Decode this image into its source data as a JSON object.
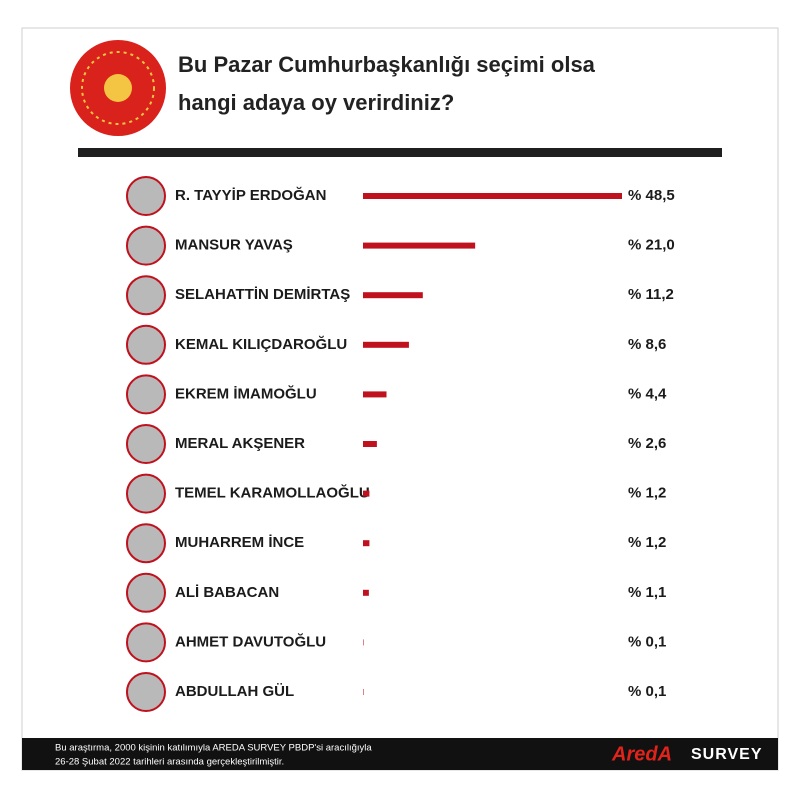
{
  "chart_data": {
    "type": "bar",
    "orientation": "horizontal",
    "title": [
      "Bu Pazar Cumhurbaşkanlığı seçimi olsa",
      "hangi adaya oy verirdiniz?"
    ],
    "categories": [
      "R. TAYYİP ERDOĞAN",
      "MANSUR YAVAŞ",
      "SELAHATTİN DEMİRTAŞ",
      "KEMAL KILIÇDAROĞLU",
      "EKREM İMAMOĞLU",
      "MERAL AKŞENER",
      "TEMEL KARAMOLLAOĞLU",
      "MUHARREM İNCE",
      "ALİ BABACAN",
      "AHMET DAVUTOĞLU",
      "ABDULLAH GÜL"
    ],
    "values": [
      48.5,
      21.0,
      11.2,
      8.6,
      4.4,
      2.6,
      1.2,
      1.2,
      1.1,
      0.1,
      0.1
    ],
    "value_labels": [
      "% 48,5",
      "% 21,0",
      "% 11,2",
      "% 8,6",
      "% 4,4",
      "% 2,6",
      "% 1,2",
      "% 1,2",
      "% 1,1",
      "% 0,1",
      "% 0,1"
    ],
    "color": "#c0121e",
    "note": [
      "Bu araştırma, 2000 kişinin katılımıyla AREDA SURVEY PBDP'si aracılığıyla",
      "26-28 Şubat 2022 tarihleri arasında gerçekleştirilmiştir."
    ],
    "brand": [
      "AredA",
      "SURVEY"
    ]
  }
}
